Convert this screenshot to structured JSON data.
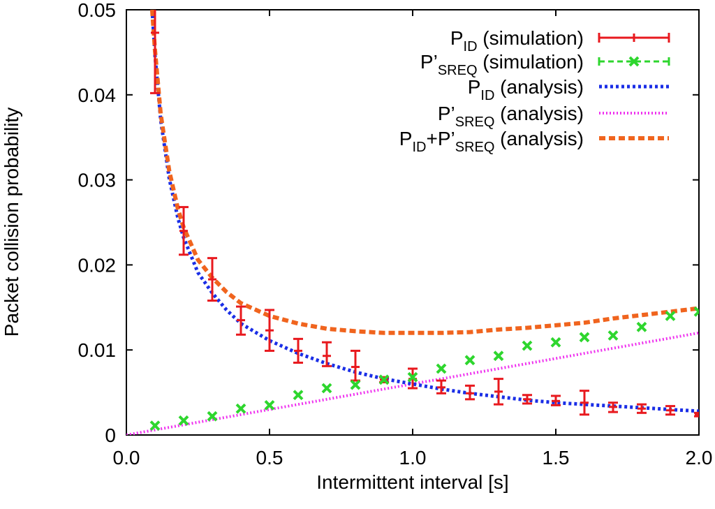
{
  "chart_data": {
    "type": "line",
    "xlabel": "Intermittent interval [s]",
    "ylabel": "Packet collision probability",
    "xlim": [
      0.0,
      2.0
    ],
    "ylim": [
      0,
      0.05
    ],
    "x_ticks": [
      0.0,
      0.5,
      1.0,
      1.5,
      2.0
    ],
    "x_tick_labels": [
      "0.0",
      "0.5",
      "1.0",
      "1.5",
      "2.0"
    ],
    "y_ticks": [
      0,
      0.01,
      0.02,
      0.03,
      0.04,
      0.05
    ],
    "y_tick_labels": [
      "0",
      "0.01",
      "0.02",
      "0.03",
      "0.04",
      "0.05"
    ],
    "grid": false,
    "legend_position": "top-right",
    "series": [
      {
        "name": "P_ID (simulation)",
        "legend": {
          "main": "P",
          "sub": "ID",
          "rest": " (simulation)"
        },
        "style": "errorbar",
        "color": "#e8191e",
        "x": [
          0.1,
          0.2,
          0.3,
          0.4,
          0.5,
          0.6,
          0.7,
          0.8,
          0.9,
          1.0,
          1.1,
          1.2,
          1.3,
          1.4,
          1.5,
          1.6,
          1.7,
          1.8,
          1.9,
          2.0
        ],
        "y": [
          0.0473,
          0.024,
          0.0183,
          0.0135,
          0.0123,
          0.0099,
          0.0093,
          0.008,
          0.0065,
          0.0066,
          0.0056,
          0.0049,
          0.0051,
          0.0042,
          0.004,
          0.0038,
          0.0033,
          0.0031,
          0.0029,
          0.0024
        ],
        "y_low": [
          0.0402,
          0.0212,
          0.0158,
          0.0118,
          0.0099,
          0.0085,
          0.0081,
          0.0064,
          0.0062,
          0.0055,
          0.0049,
          0.0042,
          0.0036,
          0.0037,
          0.0035,
          0.0024,
          0.0027,
          0.0026,
          0.0024,
          0.0022
        ],
        "y_high": [
          0.0503,
          0.0268,
          0.0208,
          0.0151,
          0.0147,
          0.0113,
          0.0109,
          0.0099,
          0.0068,
          0.0078,
          0.0064,
          0.0058,
          0.0066,
          0.0047,
          0.0046,
          0.0052,
          0.0038,
          0.0036,
          0.0034,
          0.0026
        ]
      },
      {
        "name": "P'_SREQ (simulation)",
        "legend": {
          "main": "P’",
          "sub": "SREQ",
          "rest": " (simulation)"
        },
        "style": "cross-points",
        "color": "#2ed62e",
        "x": [
          0.1,
          0.2,
          0.3,
          0.4,
          0.5,
          0.6,
          0.7,
          0.8,
          0.9,
          1.0,
          1.1,
          1.2,
          1.3,
          1.4,
          1.5,
          1.6,
          1.7,
          1.8,
          1.9,
          2.0
        ],
        "y": [
          0.0011,
          0.0017,
          0.0022,
          0.0031,
          0.0035,
          0.0047,
          0.0055,
          0.0059,
          0.0065,
          0.0068,
          0.0078,
          0.0088,
          0.0093,
          0.0105,
          0.0109,
          0.0115,
          0.0117,
          0.0127,
          0.014,
          0.0145
        ]
      },
      {
        "name": "P_ID (analysis)",
        "legend": {
          "main": "P",
          "sub": "ID",
          "rest": " (analysis)"
        },
        "style": "dotted-thick",
        "color": "#1a2ee6",
        "x": [
          0.09,
          0.1,
          0.12,
          0.15,
          0.18,
          0.2,
          0.25,
          0.3,
          0.35,
          0.4,
          0.5,
          0.6,
          0.7,
          0.8,
          0.9,
          1.0,
          1.1,
          1.2,
          1.3,
          1.4,
          1.5,
          1.6,
          1.7,
          1.8,
          1.9,
          2.0
        ],
        "y": [
          0.05,
          0.0446,
          0.037,
          0.0301,
          0.0255,
          0.0232,
          0.0191,
          0.0167,
          0.0147,
          0.0131,
          0.0111,
          0.0096,
          0.0084,
          0.0074,
          0.0066,
          0.006,
          0.0054,
          0.0049,
          0.0045,
          0.0041,
          0.0038,
          0.0036,
          0.0034,
          0.0032,
          0.003,
          0.0028
        ]
      },
      {
        "name": "P'_SREQ (analysis)",
        "legend": {
          "main": "P’",
          "sub": "SREQ",
          "rest": " (analysis)"
        },
        "style": "dotted-thin",
        "color": "#ef33ef",
        "x": [
          0.0,
          0.5,
          1.0,
          1.5,
          2.0
        ],
        "y": [
          0.0,
          0.003,
          0.006,
          0.009,
          0.012
        ]
      },
      {
        "name": "P_ID+P'_SREQ (analysis)",
        "legend": {
          "main": "P",
          "sub": "ID",
          "plus": "+P’",
          "sub2": "SREQ",
          "rest": " (analysis)"
        },
        "style": "dashed-thick",
        "color": "#f0641e",
        "x": [
          0.09,
          0.1,
          0.12,
          0.15,
          0.18,
          0.2,
          0.25,
          0.3,
          0.35,
          0.4,
          0.5,
          0.6,
          0.7,
          0.8,
          0.9,
          1.0,
          1.1,
          1.2,
          1.3,
          1.4,
          1.5,
          1.6,
          1.7,
          1.8,
          1.9,
          2.0
        ],
        "y": [
          0.05,
          0.0452,
          0.0377,
          0.031,
          0.0266,
          0.0244,
          0.0206,
          0.0185,
          0.0168,
          0.0155,
          0.014,
          0.0131,
          0.0125,
          0.0122,
          0.012,
          0.012,
          0.012,
          0.0121,
          0.0124,
          0.0126,
          0.0129,
          0.0132,
          0.0137,
          0.0141,
          0.0145,
          0.0149
        ]
      }
    ]
  }
}
